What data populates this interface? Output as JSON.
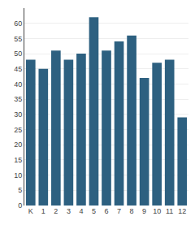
{
  "chart_data": {
    "type": "bar",
    "categories": [
      "K",
      "1",
      "2",
      "3",
      "4",
      "5",
      "6",
      "7",
      "8",
      "9",
      "10",
      "11",
      "12"
    ],
    "values": [
      48,
      45,
      51,
      48,
      50,
      62,
      51,
      54,
      56,
      42,
      47,
      48,
      29
    ],
    "color": "#2d6080",
    "ylim": [
      0,
      65
    ],
    "yticks": [
      0,
      5,
      10,
      15,
      20,
      25,
      30,
      35,
      40,
      45,
      50,
      55,
      60
    ],
    "grid": true
  }
}
